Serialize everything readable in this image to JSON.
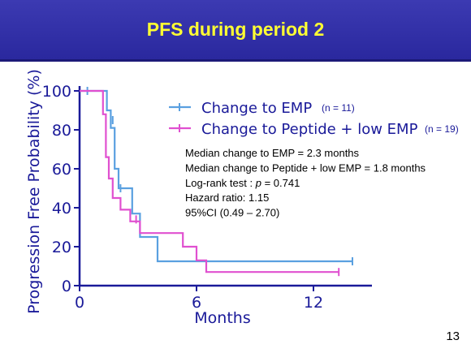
{
  "slide": {
    "title": "PFS during period 2",
    "page_number": "13"
  },
  "chart_data": {
    "type": "line",
    "step": true,
    "title": "",
    "xlabel": "Months",
    "ylabel": "Progression Free Probability (%)",
    "xlim": [
      0,
      15
    ],
    "ylim": [
      0,
      100
    ],
    "x_ticks": [
      0,
      6,
      12
    ],
    "y_ticks": [
      0,
      20,
      40,
      60,
      80,
      100
    ],
    "grid": false,
    "legend_position": "top-right",
    "series": [
      {
        "name": "Change to EMP",
        "n_label": "(n = 11)",
        "color": "#5aa0e0",
        "points": [
          [
            0,
            100
          ],
          [
            1.4,
            100
          ],
          [
            1.4,
            90
          ],
          [
            1.6,
            90
          ],
          [
            1.6,
            81
          ],
          [
            1.8,
            81
          ],
          [
            1.8,
            60
          ],
          [
            2.0,
            60
          ],
          [
            2.0,
            50
          ],
          [
            2.7,
            50
          ],
          [
            2.7,
            37
          ],
          [
            3.1,
            37
          ],
          [
            3.1,
            25
          ],
          [
            4.0,
            25
          ],
          [
            4.0,
            12.5
          ],
          [
            14,
            12.5
          ]
        ],
        "censored": [
          [
            0.4,
            100
          ],
          [
            1.7,
            85
          ],
          [
            2.1,
            50
          ],
          [
            14,
            12.5
          ]
        ]
      },
      {
        "name": "Change to Peptide + low EMP",
        "n_label": "(n = 19)",
        "color": "#e050d0",
        "points": [
          [
            0,
            100
          ],
          [
            1.2,
            100
          ],
          [
            1.2,
            88
          ],
          [
            1.35,
            88
          ],
          [
            1.35,
            66
          ],
          [
            1.5,
            66
          ],
          [
            1.5,
            55
          ],
          [
            1.7,
            55
          ],
          [
            1.7,
            45
          ],
          [
            2.1,
            45
          ],
          [
            2.1,
            39
          ],
          [
            2.6,
            39
          ],
          [
            2.6,
            33
          ],
          [
            3.1,
            33
          ],
          [
            3.1,
            27
          ],
          [
            5.3,
            27
          ],
          [
            5.3,
            20
          ],
          [
            6.0,
            20
          ],
          [
            6.0,
            13
          ],
          [
            6.5,
            13
          ],
          [
            6.5,
            7
          ],
          [
            13.3,
            7
          ]
        ],
        "censored": [
          [
            2.9,
            34
          ],
          [
            13.3,
            7
          ]
        ]
      }
    ],
    "annotations": [
      "Median change to EMP = 2.3 months",
      "Median change to Peptide + low EMP = 1.8 months",
      "Log-rank test : p = 0.741",
      "Hazard ratio: 1.15",
      "95%CI (0.49 – 2.70)"
    ]
  }
}
